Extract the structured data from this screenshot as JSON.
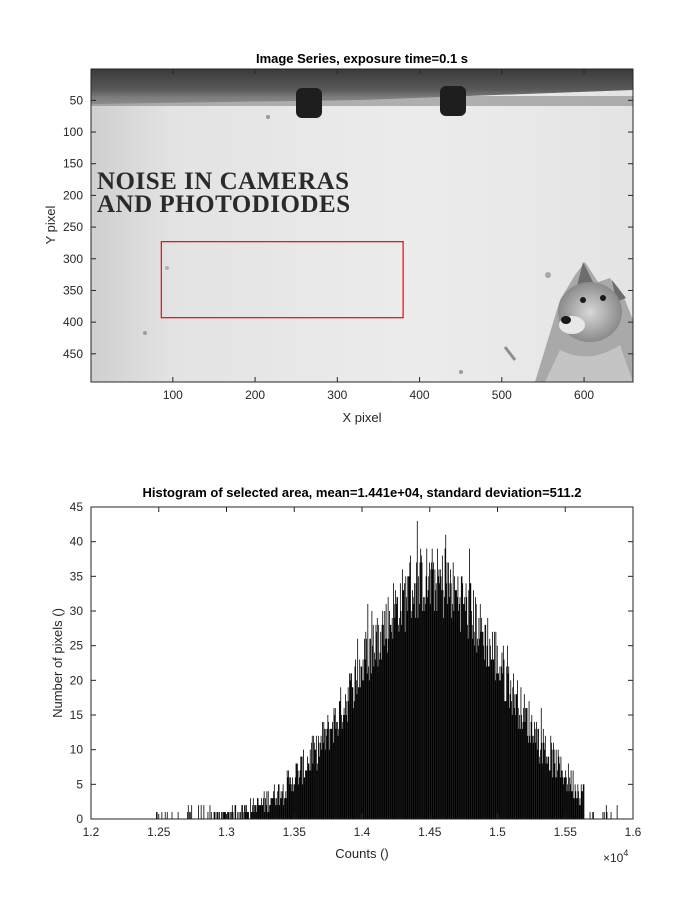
{
  "figure": {
    "image_panel": {
      "title": "Image Series, exposure time=0.1 s",
      "xlabel": "X pixel",
      "ylabel": "Y pixel",
      "x_ticks": [
        "100",
        "200",
        "300",
        "400",
        "500",
        "600"
      ],
      "y_ticks": [
        "50",
        "100",
        "150",
        "200",
        "250",
        "300",
        "350",
        "400",
        "450"
      ],
      "photo_text_line1": "NOISE IN CAMERAS",
      "photo_text_line2": "AND PHOTODIODES",
      "roi": {
        "x_range": [
          86,
          380
        ],
        "y_range": [
          273,
          393
        ],
        "color": "#ff0000"
      }
    }
  },
  "chart_data": [
    {
      "type": "bar",
      "title": "Histogram of selected area, mean=1.441e+04, standard deviation=511.2",
      "xlabel": "Counts ()",
      "ylabel": "Number of pixels ()",
      "x_exponent_label": "×10",
      "x_exponent_power": "4",
      "xlim": [
        1.2,
        1.6
      ],
      "ylim": [
        0,
        45
      ],
      "x_ticks": [
        "1.2",
        "1.25",
        "1.3",
        "1.35",
        "1.4",
        "1.45",
        "1.5",
        "1.55",
        "1.6"
      ],
      "y_ticks": [
        "0",
        "5",
        "10",
        "15",
        "20",
        "25",
        "30",
        "35",
        "40",
        "45"
      ],
      "mean": 14410,
      "std": 511.2,
      "bar_color": "#000000",
      "approx_peak_count": 44
    }
  ]
}
